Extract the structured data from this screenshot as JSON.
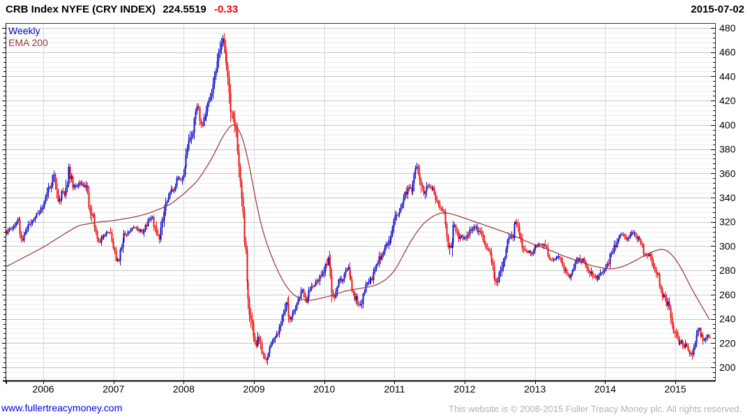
{
  "header": {
    "title_text": "CRB Index NYFE (CRY INDEX)",
    "last_price": "224.5519",
    "change": "-0.33",
    "change_color": "#ee0000",
    "date": "2015-07-02"
  },
  "legend": {
    "items": [
      {
        "label": "Weekly",
        "color": "#0000cc"
      },
      {
        "label": "EMA 200",
        "color": "#993333"
      }
    ]
  },
  "footer": {
    "link": "www.fullertreacymoney.com",
    "link_color": "#0000ee",
    "copyright": "This website is © 2008-2015 Fuller Treacy Money plc. All rights reserved.",
    "copyright_color": "#b2b2b2"
  },
  "chart_data": {
    "type": "candlestick",
    "title": "CRB Index NYFE (CRY INDEX)",
    "timeframe": "Weekly",
    "overlay": "EMA 200",
    "last_value": 224.5519,
    "change": -0.33,
    "as_of": "2015-07-02",
    "x_ticks": [
      2006,
      2007,
      2008,
      2009,
      2010,
      2011,
      2012,
      2013,
      2014,
      2015
    ],
    "y_ticks": [
      200,
      220,
      240,
      260,
      280,
      300,
      320,
      340,
      360,
      380,
      400,
      420,
      440,
      460,
      480
    ],
    "y_minor_step": 4,
    "ylim": [
      189,
      484
    ],
    "xlim": [
      2005.47,
      2016.1
    ],
    "grid": true,
    "legend_position": "top-left",
    "up_color": "#1111cc",
    "down_color": "#ee1111",
    "ema_color": "#993333",
    "series": [
      {
        "name": "CRB Index NYFE weekly close (key points, decimal-year)",
        "points": [
          [
            2005.47,
            311
          ],
          [
            2005.56,
            317
          ],
          [
            2005.63,
            320
          ],
          [
            2005.69,
            306
          ],
          [
            2005.76,
            313
          ],
          [
            2005.85,
            323
          ],
          [
            2005.93,
            328
          ],
          [
            2006.0,
            334
          ],
          [
            2006.08,
            349
          ],
          [
            2006.14,
            361
          ],
          [
            2006.2,
            334
          ],
          [
            2006.27,
            347
          ],
          [
            2006.31,
            341
          ],
          [
            2006.36,
            365
          ],
          [
            2006.44,
            346
          ],
          [
            2006.52,
            353
          ],
          [
            2006.61,
            348
          ],
          [
            2006.69,
            327
          ],
          [
            2006.77,
            303
          ],
          [
            2006.85,
            308
          ],
          [
            2006.93,
            313
          ],
          [
            2007.0,
            298
          ],
          [
            2007.06,
            287
          ],
          [
            2007.14,
            308
          ],
          [
            2007.23,
            313
          ],
          [
            2007.31,
            316
          ],
          [
            2007.4,
            311
          ],
          [
            2007.48,
            320
          ],
          [
            2007.56,
            323
          ],
          [
            2007.64,
            304
          ],
          [
            2007.73,
            333
          ],
          [
            2007.81,
            344
          ],
          [
            2007.89,
            354
          ],
          [
            2007.96,
            356
          ],
          [
            2008.04,
            377
          ],
          [
            2008.12,
            396
          ],
          [
            2008.19,
            414
          ],
          [
            2008.25,
            400
          ],
          [
            2008.31,
            409
          ],
          [
            2008.4,
            428
          ],
          [
            2008.46,
            443
          ],
          [
            2008.5,
            459
          ],
          [
            2008.54,
            473
          ],
          [
            2008.58,
            458
          ],
          [
            2008.63,
            437
          ],
          [
            2008.67,
            413
          ],
          [
            2008.73,
            396
          ],
          [
            2008.78,
            372
          ],
          [
            2008.82,
            335
          ],
          [
            2008.86,
            302
          ],
          [
            2008.9,
            272
          ],
          [
            2008.94,
            243
          ],
          [
            2008.98,
            226
          ],
          [
            2009.02,
            216
          ],
          [
            2009.06,
            228
          ],
          [
            2009.1,
            214
          ],
          [
            2009.15,
            204
          ],
          [
            2009.19,
            212
          ],
          [
            2009.27,
            221
          ],
          [
            2009.35,
            231
          ],
          [
            2009.42,
            246
          ],
          [
            2009.46,
            259
          ],
          [
            2009.52,
            237
          ],
          [
            2009.6,
            253
          ],
          [
            2009.68,
            263
          ],
          [
            2009.75,
            254
          ],
          [
            2009.83,
            268
          ],
          [
            2009.92,
            272
          ],
          [
            2010.0,
            283
          ],
          [
            2010.05,
            291
          ],
          [
            2010.12,
            257
          ],
          [
            2010.19,
            267
          ],
          [
            2010.27,
            276
          ],
          [
            2010.33,
            281
          ],
          [
            2010.42,
            261
          ],
          [
            2010.49,
            250
          ],
          [
            2010.56,
            264
          ],
          [
            2010.65,
            272
          ],
          [
            2010.73,
            281
          ],
          [
            2010.81,
            294
          ],
          [
            2010.9,
            301
          ],
          [
            2011.0,
            319
          ],
          [
            2011.08,
            331
          ],
          [
            2011.15,
            341
          ],
          [
            2011.21,
            351
          ],
          [
            2011.25,
            344
          ],
          [
            2011.3,
            362
          ],
          [
            2011.33,
            369
          ],
          [
            2011.38,
            347
          ],
          [
            2011.42,
            341
          ],
          [
            2011.46,
            351
          ],
          [
            2011.54,
            347
          ],
          [
            2011.58,
            341
          ],
          [
            2011.65,
            331
          ],
          [
            2011.71,
            326
          ],
          [
            2011.75,
            313
          ],
          [
            2011.79,
            294
          ],
          [
            2011.85,
            317
          ],
          [
            2011.92,
            307
          ],
          [
            2012.0,
            306
          ],
          [
            2012.08,
            313
          ],
          [
            2012.15,
            317
          ],
          [
            2012.25,
            307
          ],
          [
            2012.33,
            294
          ],
          [
            2012.4,
            281
          ],
          [
            2012.46,
            268
          ],
          [
            2012.54,
            289
          ],
          [
            2012.62,
            303
          ],
          [
            2012.67,
            309
          ],
          [
            2012.71,
            320
          ],
          [
            2012.79,
            307
          ],
          [
            2012.87,
            295
          ],
          [
            2012.96,
            294
          ],
          [
            2013.04,
            301
          ],
          [
            2013.1,
            303
          ],
          [
            2013.2,
            291
          ],
          [
            2013.29,
            288
          ],
          [
            2013.36,
            292
          ],
          [
            2013.42,
            279
          ],
          [
            2013.46,
            275
          ],
          [
            2013.54,
            281
          ],
          [
            2013.62,
            292
          ],
          [
            2013.7,
            285
          ],
          [
            2013.78,
            279
          ],
          [
            2013.83,
            273
          ],
          [
            2013.92,
            276
          ],
          [
            2014.0,
            281
          ],
          [
            2014.08,
            293
          ],
          [
            2014.16,
            303
          ],
          [
            2014.24,
            310
          ],
          [
            2014.32,
            307
          ],
          [
            2014.38,
            312
          ],
          [
            2014.46,
            307
          ],
          [
            2014.54,
            297
          ],
          [
            2014.62,
            291
          ],
          [
            2014.7,
            281
          ],
          [
            2014.76,
            271
          ],
          [
            2014.82,
            261
          ],
          [
            2014.88,
            252
          ],
          [
            2014.94,
            240
          ],
          [
            2015.0,
            228
          ],
          [
            2015.04,
            217
          ],
          [
            2015.08,
            224
          ],
          [
            2015.13,
            219
          ],
          [
            2015.17,
            213
          ],
          [
            2015.21,
            209
          ],
          [
            2015.26,
            219
          ],
          [
            2015.3,
            225
          ],
          [
            2015.33,
            231
          ],
          [
            2015.38,
            227
          ],
          [
            2015.42,
            221
          ],
          [
            2015.45,
            226
          ],
          [
            2015.487,
            224.55
          ]
        ]
      },
      {
        "name": "EMA 200",
        "points": [
          [
            2005.47,
            283
          ],
          [
            2006.0,
            299
          ],
          [
            2006.3,
            310
          ],
          [
            2006.5,
            317
          ],
          [
            2006.8,
            320
          ],
          [
            2007.0,
            321
          ],
          [
            2007.3,
            324
          ],
          [
            2007.5,
            327
          ],
          [
            2007.8,
            334
          ],
          [
            2008.0,
            343
          ],
          [
            2008.2,
            354
          ],
          [
            2008.4,
            372
          ],
          [
            2008.55,
            390
          ],
          [
            2008.68,
            401
          ],
          [
            2008.76,
            400
          ],
          [
            2008.86,
            386
          ],
          [
            2008.95,
            362
          ],
          [
            2009.05,
            330
          ],
          [
            2009.15,
            307
          ],
          [
            2009.28,
            287
          ],
          [
            2009.42,
            270
          ],
          [
            2009.55,
            260
          ],
          [
            2009.68,
            256
          ],
          [
            2009.8,
            255
          ],
          [
            2009.95,
            257
          ],
          [
            2010.1,
            259
          ],
          [
            2010.3,
            263
          ],
          [
            2010.5,
            265
          ],
          [
            2010.7,
            267
          ],
          [
            2010.85,
            271
          ],
          [
            2011.0,
            279
          ],
          [
            2011.12,
            292
          ],
          [
            2011.25,
            306
          ],
          [
            2011.4,
            318
          ],
          [
            2011.55,
            325
          ],
          [
            2011.7,
            328
          ],
          [
            2011.85,
            326
          ],
          [
            2012.0,
            323
          ],
          [
            2012.2,
            319
          ],
          [
            2012.4,
            315
          ],
          [
            2012.6,
            311
          ],
          [
            2012.8,
            306
          ],
          [
            2013.0,
            301
          ],
          [
            2013.2,
            297
          ],
          [
            2013.4,
            292
          ],
          [
            2013.6,
            288
          ],
          [
            2013.8,
            284
          ],
          [
            2013.95,
            282
          ],
          [
            2014.1,
            281
          ],
          [
            2014.25,
            283
          ],
          [
            2014.4,
            287
          ],
          [
            2014.55,
            292
          ],
          [
            2014.7,
            296
          ],
          [
            2014.82,
            298
          ],
          [
            2014.92,
            295
          ],
          [
            2015.02,
            288
          ],
          [
            2015.12,
            278
          ],
          [
            2015.22,
            266
          ],
          [
            2015.32,
            256
          ],
          [
            2015.42,
            246
          ],
          [
            2015.5,
            238
          ]
        ]
      }
    ]
  }
}
